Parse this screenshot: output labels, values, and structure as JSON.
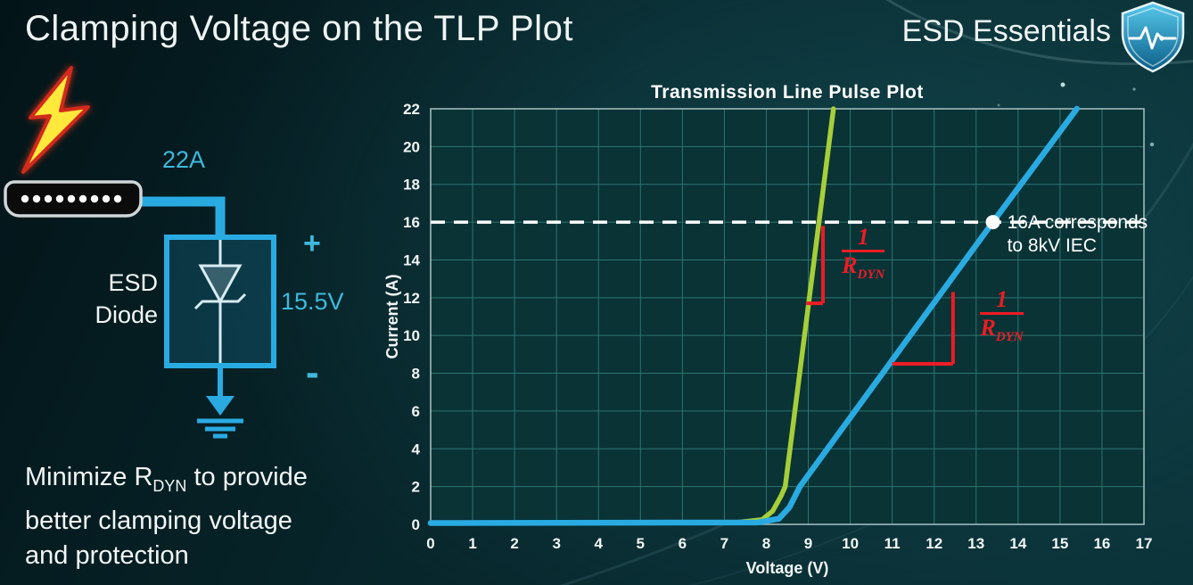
{
  "slide": {
    "title": "Clamping Voltage on the TLP Plot",
    "brand": "ESD Essentials"
  },
  "diagram": {
    "surge_label": "22A",
    "device_label_line1": "ESD",
    "device_label_line2": "Diode",
    "plus": "+",
    "minus": "-",
    "clamp_voltage": "15.5V"
  },
  "footnote": {
    "line1_pre": "Minimize R",
    "line1_sub": "DYN",
    "line1_post": " to provide",
    "line2": "better clamping voltage",
    "line3": "and protection"
  },
  "colors": {
    "accent_blue": "#29abe2",
    "curve_green": "#a6ce39",
    "annotation_red": "#ed1c24",
    "text_white": "#f2f6f6"
  },
  "chart_data": {
    "type": "line",
    "title": "Transmission Line Pulse Plot",
    "xlabel": "Voltage (V)",
    "ylabel": "Current (A)",
    "xlim": [
      0,
      17
    ],
    "ylim": [
      0,
      22
    ],
    "x_ticks": [
      0,
      1,
      2,
      3,
      4,
      5,
      6,
      7,
      8,
      9,
      10,
      11,
      12,
      13,
      14,
      15,
      16,
      17
    ],
    "y_ticks": [
      0,
      2,
      4,
      6,
      8,
      10,
      12,
      14,
      16,
      18,
      20,
      22
    ],
    "grid": true,
    "legend": "none",
    "colors": {
      "plot_bg": "#0a3336",
      "grid": "#2c7473",
      "border": "#a9c3c3"
    },
    "series": [
      {
        "name": "green-curve-low-rdyn",
        "color": "#a6ce39",
        "points": [
          [
            0,
            0.07
          ],
          [
            7.3,
            0.1
          ],
          [
            7.9,
            0.25
          ],
          [
            8.15,
            0.7
          ],
          [
            8.35,
            1.5
          ],
          [
            8.45,
            2
          ],
          [
            9.6,
            22
          ]
        ]
      },
      {
        "name": "blue-curve-high-rdyn",
        "color": "#29abe2",
        "points": [
          [
            0,
            0.07
          ],
          [
            7.8,
            0.1
          ],
          [
            8.3,
            0.3
          ],
          [
            8.55,
            0.9
          ],
          [
            8.8,
            2
          ],
          [
            13.4,
            16
          ],
          [
            15.4,
            22
          ]
        ]
      }
    ],
    "reference_line": {
      "y": 16,
      "style": "dashed",
      "color": "#ffffff"
    },
    "marker": {
      "x": 13.4,
      "y": 16,
      "label": [
        "16A corresponds",
        "to 8kV IEC"
      ]
    },
    "slope_annotations": [
      {
        "target": "green-curve-low-rdyn",
        "color": "#ed1c24",
        "v_line": {
          "x": 9.35,
          "y1": 11.7,
          "y2": 15.8
        },
        "h_line": {
          "y": 11.7,
          "x1": 8.95,
          "x2": 9.35
        },
        "fraction": {
          "numerator": "1",
          "denominator": "R",
          "denominator_sub": "DYN",
          "x": 9.8,
          "y": 15.9
        }
      },
      {
        "target": "blue-curve-high-rdyn",
        "color": "#ed1c24",
        "v_line": {
          "x": 12.45,
          "y1": 8.5,
          "y2": 12.3
        },
        "h_line": {
          "y": 8.5,
          "x1": 11.0,
          "x2": 12.45
        },
        "fraction": {
          "numerator": "1",
          "denominator": "R",
          "denominator_sub": "DYN",
          "x": 13.1,
          "y": 12.6
        }
      }
    ]
  }
}
